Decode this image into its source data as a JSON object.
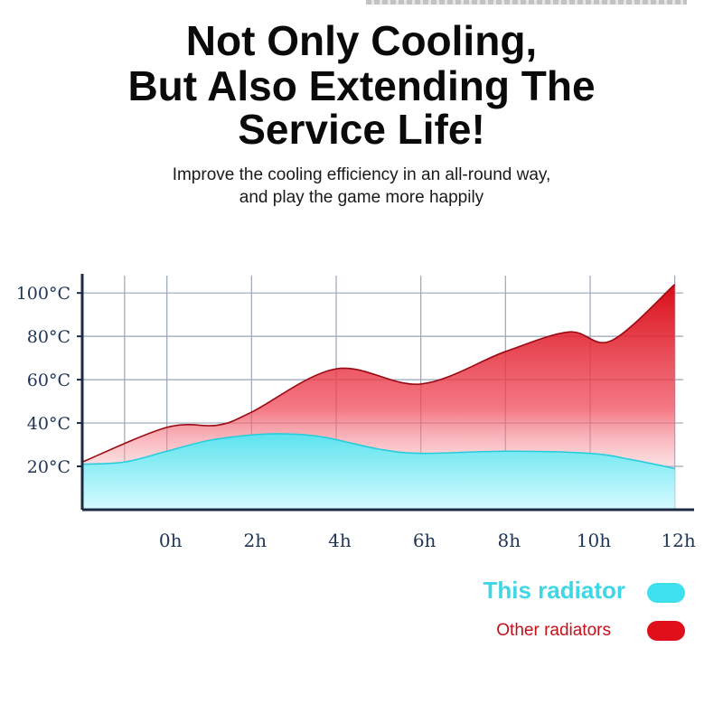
{
  "header": {
    "title_lines": [
      "Not Only Cooling,",
      "But Also Extending The",
      "Service Life!"
    ],
    "subtitle_lines": [
      "Improve the cooling efficiency in an all-round way,",
      "and play the game more happily"
    ]
  },
  "legend": {
    "items": [
      {
        "label": "This radiator",
        "color": "#3fe0ee"
      },
      {
        "label": "Other radiators",
        "color": "#e0101a"
      }
    ]
  },
  "chart_data": {
    "type": "area",
    "title": "",
    "xlabel": "",
    "ylabel": "",
    "x_ticks": [
      "0h",
      "2h",
      "4h",
      "6h",
      "8h",
      "10h",
      "12h"
    ],
    "y_ticks": [
      "20°C",
      "40°C",
      "60°C",
      "80°C",
      "100°C"
    ],
    "y_tick_values": [
      20,
      40,
      60,
      80,
      100
    ],
    "xlim": [
      -2,
      12.2
    ],
    "ylim": [
      0,
      108
    ],
    "grid": true,
    "legend_position": "bottom-right",
    "series": [
      {
        "name": "Other radiators",
        "color": "#e0101a",
        "x": [
          -2,
          0,
          1.2,
          2,
          4,
          6,
          8,
          9.5,
          10.5,
          12
        ],
        "y": [
          22,
          38,
          39,
          45,
          65,
          58,
          73,
          82,
          78,
          104
        ]
      },
      {
        "name": "This radiator",
        "color": "#3fe0ee",
        "x": [
          -2,
          -1,
          0,
          1,
          2,
          2.8,
          3.7,
          5,
          6,
          8,
          10,
          11,
          12
        ],
        "y": [
          21,
          22,
          27,
          32,
          34.5,
          35,
          33.5,
          28,
          26,
          27,
          26,
          23,
          19
        ]
      }
    ]
  }
}
